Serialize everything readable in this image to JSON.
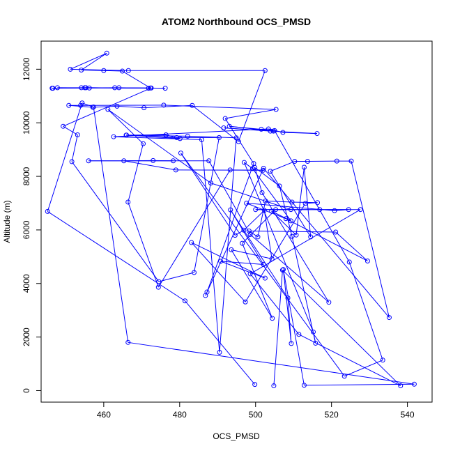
{
  "chart_data": {
    "type": "line",
    "title": "ATOM2 Northbound OCS_PMSD",
    "xlabel": "OCS_PMSD",
    "ylabel": "Altitude (m)",
    "xlim": [
      443.5,
      546.5
    ],
    "ylim": [
      -430,
      13050
    ],
    "xticks": [
      460,
      480,
      500,
      520,
      540
    ],
    "yticks": [
      0,
      2000,
      4000,
      6000,
      8000,
      10000,
      12000
    ],
    "color": "#0000ff",
    "markers": "open-circle",
    "grid": false,
    "series": [
      {
        "points": [
          [
            504.8,
            180
          ],
          [
            507.1,
            4500
          ],
          [
            538.2,
            180
          ],
          [
            511.4,
            2100
          ],
          [
            498.6,
            4360
          ],
          [
            527.6,
            6760
          ],
          [
            500.0,
            6760
          ],
          [
            509.3,
            6760
          ],
          [
            488.2,
            7750
          ],
          [
            461.1,
            10500
          ],
          [
            470.4,
            9220
          ],
          [
            466.4,
            7040
          ],
          [
            474.4,
            3860
          ],
          [
            493.3,
            8240
          ],
          [
            502.0,
            8230
          ],
          [
            479.0,
            8240
          ],
          [
            465.3,
            8580
          ],
          [
            473.0,
            8590
          ],
          [
            478.3,
            8580
          ],
          [
            456.0,
            8580
          ],
          [
            487.7,
            8580
          ],
          [
            498.6,
            5830
          ],
          [
            519.3,
            3300
          ],
          [
            501.7,
            7390
          ],
          [
            499.8,
            8330
          ],
          [
            506.3,
            7640
          ],
          [
            509.6,
            5760
          ],
          [
            515.8,
            1770
          ],
          [
            515.2,
            2190
          ],
          [
            497.0,
            8520
          ],
          [
            499.2,
            8290
          ],
          [
            509.3,
            6340
          ],
          [
            504.2,
            6700
          ],
          [
            510.7,
            5810
          ],
          [
            512.8,
            8340
          ],
          [
            514.5,
            5740
          ],
          [
            503.9,
            8190
          ],
          [
            510.3,
            8560
          ],
          [
            513.7,
            8560
          ],
          [
            521.4,
            8570
          ],
          [
            525.2,
            8570
          ],
          [
            535.2,
            2730
          ],
          [
            502.1,
            8300
          ],
          [
            486.8,
            3550
          ],
          [
            487.2,
            3680
          ],
          [
            499.5,
            8480
          ],
          [
            492.0,
            10160
          ],
          [
            505.4,
            10500
          ],
          [
            475.8,
            10660
          ],
          [
            453.9,
            10650
          ],
          [
            450.8,
            10650
          ],
          [
            457.1,
            10580
          ],
          [
            463.5,
            10620
          ],
          [
            470.6,
            10560
          ],
          [
            483.3,
            10650
          ],
          [
            495.5,
            9300
          ],
          [
            502.5,
            11950
          ],
          [
            466.5,
            11950
          ],
          [
            451.2,
            12000
          ],
          [
            460.8,
            12600
          ],
          [
            454.1,
            11970
          ],
          [
            460.0,
            11950
          ],
          [
            464.9,
            11930
          ],
          [
            472.3,
            11300
          ],
          [
            455.0,
            11310
          ],
          [
            446.4,
            11290
          ],
          [
            462.9,
            11310
          ],
          [
            471.8,
            11290
          ],
          [
            455.3,
            11310
          ],
          [
            446.6,
            11290
          ],
          [
            464.0,
            11310
          ],
          [
            476.2,
            11290
          ],
          [
            454.1,
            11310
          ],
          [
            447.8,
            11310
          ],
          [
            456.2,
            11300
          ],
          [
            472.5,
            11300
          ],
          [
            449.3,
            9870
          ],
          [
            453.1,
            9550
          ],
          [
            451.6,
            8550
          ],
          [
            474.5,
            4070
          ],
          [
            483.8,
            4410
          ],
          [
            490.4,
            9450
          ],
          [
            479.2,
            9450
          ],
          [
            466.0,
            9540
          ],
          [
            480.1,
            9410
          ],
          [
            476.4,
            9550
          ],
          [
            465.9,
            9540
          ],
          [
            482.1,
            9500
          ],
          [
            494.9,
            9440
          ],
          [
            490.5,
            1430
          ],
          [
            485.8,
            9370
          ],
          [
            462.6,
            9480
          ],
          [
            501.5,
            9760
          ],
          [
            503.4,
            9770
          ],
          [
            507.2,
            9640
          ],
          [
            516.2,
            9600
          ],
          [
            503.9,
            9690
          ],
          [
            491.6,
            9810
          ],
          [
            504.7,
            9690
          ],
          [
            493.1,
            9870
          ],
          [
            505.0,
            9710
          ],
          [
            524.7,
            4800
          ],
          [
            533.5,
            1140
          ],
          [
            523.4,
            540
          ],
          [
            480.3,
            8870
          ],
          [
            494.6,
            5800
          ],
          [
            496.9,
            5990
          ],
          [
            502.3,
            6730
          ],
          [
            504.3,
            4920
          ],
          [
            493.6,
            5260
          ],
          [
            504.4,
            2700
          ],
          [
            496.5,
            5500
          ],
          [
            505.3,
            6760
          ],
          [
            516.9,
            6760
          ],
          [
            524.5,
            6760
          ],
          [
            520.8,
            6720
          ],
          [
            497.6,
            7000
          ],
          [
            508.0,
            6420
          ],
          [
            529.5,
            4840
          ],
          [
            521.1,
            5920
          ],
          [
            498.3,
            5960
          ],
          [
            500.6,
            5740
          ],
          [
            502.6,
            7080
          ],
          [
            509.6,
            7040
          ],
          [
            516.3,
            7020
          ],
          [
            513.1,
            6990
          ],
          [
            497.3,
            3310
          ],
          [
            483.1,
            5530
          ],
          [
            502.5,
            4200
          ],
          [
            490.8,
            4830
          ],
          [
            502.1,
            4710
          ],
          [
            493.4,
            6750
          ],
          [
            508.5,
            3460
          ],
          [
            509.4,
            1760
          ],
          [
            507.3,
            4520
          ],
          [
            512.8,
            200
          ],
          [
            541.8,
            240
          ],
          [
            466.4,
            1800
          ],
          [
            457.3,
            10590
          ],
          [
            454.3,
            10740
          ],
          [
            445.2,
            6690
          ],
          [
            481.4,
            3350
          ],
          [
            499.8,
            230
          ]
        ]
      }
    ]
  }
}
